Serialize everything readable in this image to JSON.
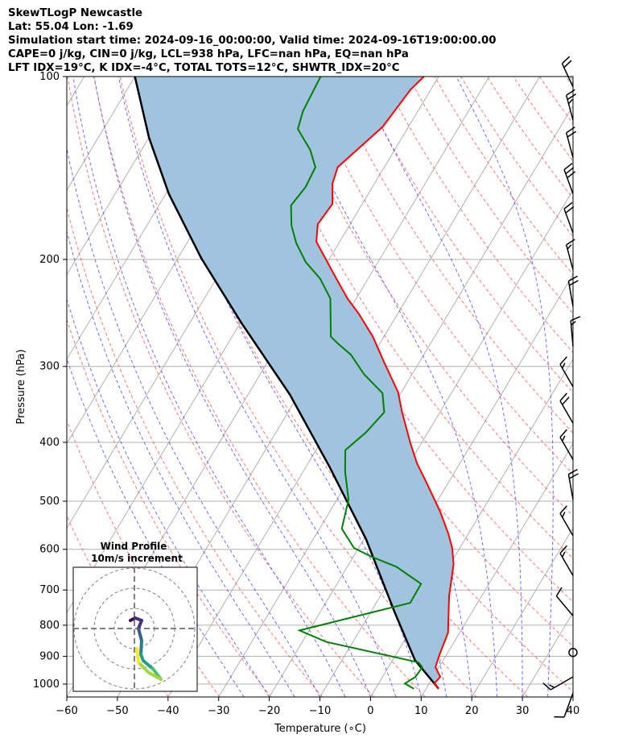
{
  "header": {
    "line1": "SkewTLogP Newcastle",
    "line2": "Lat: 55.04   Lon: -1.69",
    "line3": "Simulation start time: 2024-09-16_00:00:00, Valid time: 2024-09-16T19:00:00.00",
    "line4": "CAPE=0 j/kg, CIN=0 j/kg, LCL=938 hPa, LFC=nan hPa, EQ=nan hPa",
    "line5": "LFT IDX=19°C, K IDX=-4°C, TOTAL TOTS=12°C, SHWTR_IDX=20°C"
  },
  "chart_data": {
    "type": "line",
    "title": "SkewTLogP Newcastle",
    "xlabel": "Temperature (∘C)",
    "ylabel": "Pressure (hPa)",
    "xlim": [
      -60,
      40
    ],
    "ylim": [
      1050,
      100
    ],
    "xticks": [
      "−60",
      "−50",
      "−40",
      "−30",
      "−20",
      "−10",
      "0",
      "10",
      "20",
      "30",
      "40"
    ],
    "xtick_values": [
      -60,
      -50,
      -40,
      -30,
      -20,
      -10,
      0,
      10,
      20,
      30,
      40
    ],
    "yticks": [
      "100",
      "200",
      "300",
      "400",
      "500",
      "600",
      "700",
      "800",
      "900",
      "1000"
    ],
    "ytick_values": [
      100,
      200,
      300,
      400,
      500,
      600,
      700,
      800,
      900,
      1000
    ],
    "grid": true,
    "colors": {
      "temperature": "#ff0000",
      "dewpoint": "#008000",
      "parcel": "#000000",
      "shade": "#a0c4dd",
      "dry": "#ff6666",
      "moist": "#5555ff",
      "grid": "#b0b0b0"
    },
    "series": [
      {
        "name": "temperature",
        "p": [
          1018,
          998,
          973,
          938,
          901,
          823,
          717,
          635,
          597,
          565,
          520,
          467,
          433,
          401,
          355,
          331,
          296,
          268,
          246,
          232,
          215,
          187,
          175,
          162,
          150,
          141,
          121,
          105,
          100
        ],
        "T": [
          12.5,
          11.0,
          11.4,
          9.3,
          8.7,
          7.7,
          3.6,
          0.7,
          -1.5,
          -4.0,
          -8.2,
          -14.2,
          -18.5,
          -22.2,
          -27.7,
          -30.6,
          -36.8,
          -42.2,
          -47.6,
          -51.7,
          -56.3,
          -64.6,
          -66.4,
          -65.9,
          -68.3,
          -69.2,
          -65.1,
          -64.0,
          -62.9
        ]
      },
      {
        "name": "dewpoint",
        "p": [
          1018,
          998,
          973,
          938,
          921,
          852,
          816,
          735,
          684,
          641,
          617,
          597,
          555,
          497,
          447,
          412,
          385,
          357,
          332,
          309,
          287,
          275,
          268,
          232,
          215,
          202,
          188,
          176,
          163,
          152,
          141,
          132,
          122,
          114,
          100
        ],
        "T": [
          7.6,
          5.2,
          6.5,
          6.7,
          5.4,
          -15.3,
          -21.9,
          -3.3,
          -3.4,
          -10.3,
          -16.4,
          -20.9,
          -25.6,
          -27.7,
          -31.7,
          -34.2,
          -32.2,
          -31.0,
          -33.6,
          -39.5,
          -44.4,
          -48.3,
          -50.5,
          -55.1,
          -59.5,
          -64.3,
          -68.4,
          -71.4,
          -73.9,
          -73.2,
          -73.6,
          -76.7,
          -81.6,
          -82.7,
          -83.3
        ]
      },
      {
        "name": "parcel",
        "p": [
          1018,
          913,
          761,
          578,
          440,
          334,
          254,
          199,
          156,
          126,
          100
        ],
        "T": [
          12.5,
          4.4,
          -5.3,
          -19.5,
          -35.2,
          -51.7,
          -69.9,
          -85.4,
          -99.4,
          -110,
          -120
        ]
      }
    ],
    "wind_barbs": [
      {
        "p": 104,
        "dir": 335,
        "kt": 20
      },
      {
        "p": 118,
        "dir": 345,
        "kt": 25
      },
      {
        "p": 136,
        "dir": 345,
        "kt": 20
      },
      {
        "p": 156,
        "dir": 340,
        "kt": 30
      },
      {
        "p": 181,
        "dir": 340,
        "kt": 20
      },
      {
        "p": 208,
        "dir": 345,
        "kt": 15
      },
      {
        "p": 239,
        "dir": 350,
        "kt": 20
      },
      {
        "p": 278,
        "dir": 355,
        "kt": 15
      },
      {
        "p": 324,
        "dir": 330,
        "kt": 15
      },
      {
        "p": 372,
        "dir": 330,
        "kt": 20
      },
      {
        "p": 427,
        "dir": 330,
        "kt": 15
      },
      {
        "p": 497,
        "dir": 350,
        "kt": 20
      },
      {
        "p": 570,
        "dir": 330,
        "kt": 15
      },
      {
        "p": 663,
        "dir": 330,
        "kt": 15
      },
      {
        "p": 772,
        "dir": 320,
        "kt": 10
      },
      {
        "p": 887,
        "dir": 0,
        "kt": 0
      },
      {
        "p": 973,
        "dir": 240,
        "kt": 15
      },
      {
        "p": 1034,
        "dir": 200,
        "kt": 10
      }
    ],
    "hodograph": {
      "title": "Wind Profile",
      "subtitle": "10m/s increment",
      "rings_ms": [
        10,
        20,
        30
      ],
      "u": [
        -2,
        0.4,
        3.6,
        2,
        3.6,
        3.2,
        4.4,
        9.2,
        13.2,
        7.2,
        2,
        1.2
      ],
      "v": [
        4,
        5.2,
        4,
        0,
        -6,
        -12.8,
        -16,
        -20,
        -25.2,
        -22,
        -16.8,
        -10
      ]
    }
  }
}
